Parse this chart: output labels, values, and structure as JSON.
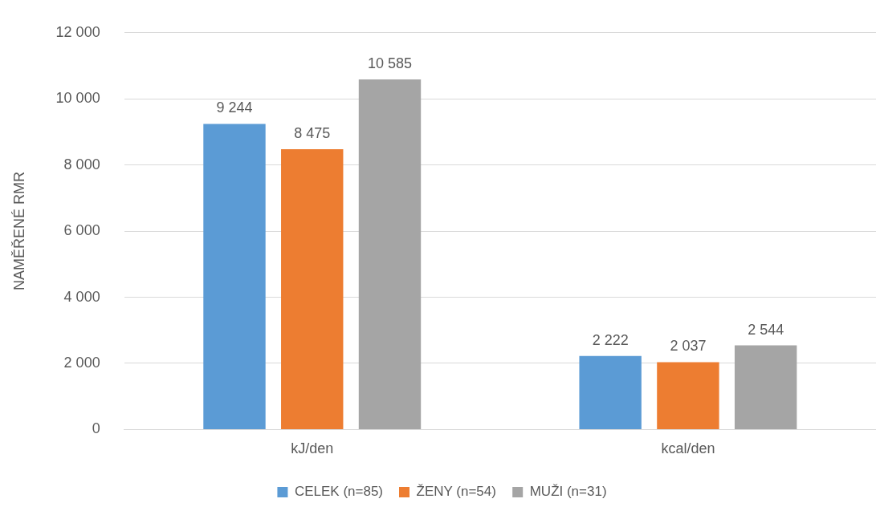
{
  "chart_data": {
    "type": "bar",
    "ylabel": "NAMĚŘENÉ RMR",
    "categories": [
      "kJ/den",
      "kcal/den"
    ],
    "series": [
      {
        "name": "CELEK (n=85)",
        "color": "#5b9bd5",
        "values": [
          9244,
          2222
        ],
        "value_labels": [
          "9 244",
          "2 222"
        ]
      },
      {
        "name": "ŽENY (n=54)",
        "color": "#ed7d31",
        "values": [
          8475,
          2037
        ],
        "value_labels": [
          "8 475",
          "2 037"
        ]
      },
      {
        "name": "MUŽI (n=31)",
        "color": "#a5a5a5",
        "values": [
          10585,
          2544
        ],
        "value_labels": [
          "10 585",
          "2 544"
        ]
      }
    ],
    "ylim": [
      0,
      12000
    ],
    "yticks": [
      0,
      {
        "value": 2000,
        "label": "2 000"
      },
      {
        "value": 4000,
        "label": "4 000"
      },
      {
        "value": 6000,
        "label": "6 000"
      },
      {
        "value": 8000,
        "label": "8 000"
      },
      {
        "value": 10000,
        "label": "10 000"
      },
      {
        "value": 12000,
        "label": "12 000"
      }
    ],
    "grid": "y",
    "legend": "bottom"
  }
}
